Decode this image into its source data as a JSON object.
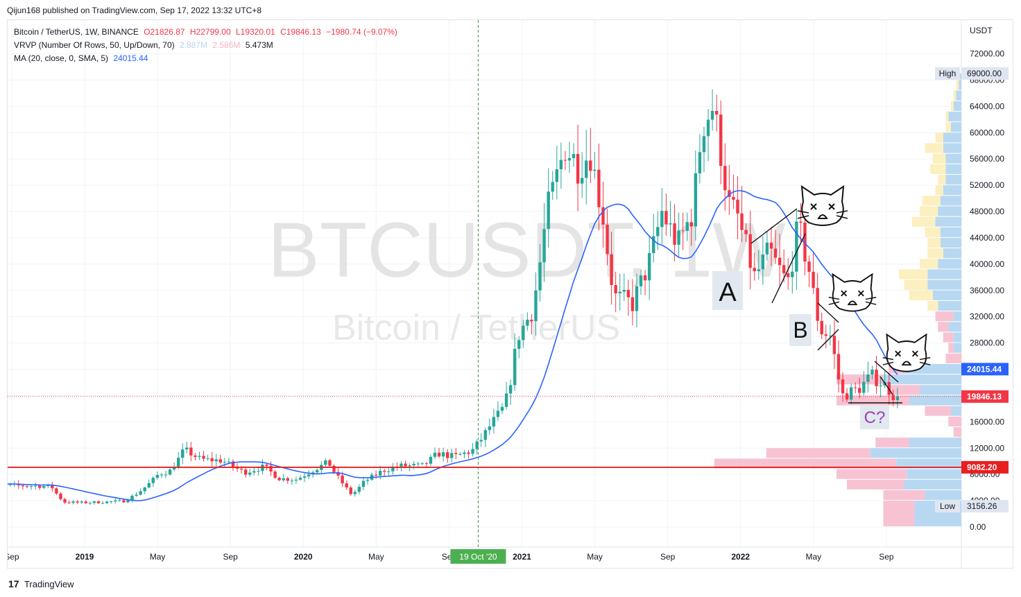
{
  "publisher": "Qijun168 published on TradingView.com, Sep 17, 2022 13:32 UTC+8",
  "footer": {
    "logo_glyph": "17",
    "brand": "TradingView"
  },
  "legend": {
    "symbol": "Bitcoin / TetherUS, 1W, BINANCE",
    "open": "O21826.87",
    "high": "H22799.00",
    "low": "L19320.01",
    "close": "C19846.13",
    "change": "−1980.74 (−9.07%)",
    "vrvp_label": "VRVP (Number Of Rows, 50, Up/Down, 70)",
    "vrvp_up": "2.887M",
    "vrvp_down": "2.586M",
    "vrvp_total": "5.473M",
    "ma_label": "MA (20, close, 0, SMA, 5)",
    "ma_value": "24015.44"
  },
  "watermark": {
    "line1": "BTCUSDT, 1W",
    "line2": "Bitcoin / TetherUS"
  },
  "annotations": {
    "a": "A",
    "b": "B",
    "c": "C?"
  },
  "colors": {
    "up": "#26a69a",
    "down": "#f23645",
    "ma": "#2962ff",
    "support": "#e91e1e",
    "vrvp_up": "#b8d8f2",
    "vrvp_down": "#f7c3d3",
    "vrvp_va_up": "#fcefc0"
  },
  "chart_data": {
    "type": "candlestick",
    "title": "Bitcoin / TetherUS, 1W, BINANCE",
    "currency": "USDT",
    "ylim": [
      -2200,
      77000
    ],
    "y_ticks": [
      0,
      4000,
      8000,
      12000,
      16000,
      20000,
      24000,
      28000,
      32000,
      36000,
      40000,
      44000,
      48000,
      52000,
      56000,
      60000,
      64000,
      68000,
      72000
    ],
    "y_tick_labels": [
      "0.00",
      "4000.00",
      "8000.00",
      "12000.00",
      "16000.00",
      "20000.00",
      "24000.00",
      "28000.00",
      "32000.00",
      "36000.00",
      "40000.00",
      "44000.00",
      "48000.00",
      "52000.00",
      "56000.00",
      "60000.00",
      "64000.00",
      "68000.00",
      "72000.00"
    ],
    "x_labels": [
      "Sep",
      "2019",
      "May",
      "Sep",
      "2020",
      "May",
      "Sep",
      "2021",
      "May",
      "Sep",
      "2022",
      "May",
      "Sep"
    ],
    "x_label_months": [
      -4,
      0,
      4,
      8,
      12,
      16,
      20,
      24,
      28,
      32,
      36,
      40,
      44
    ],
    "crosshair_label": "19 Oct '20",
    "crosshair_month": 21.6,
    "price_labels": {
      "high_label": "High",
      "high": "69000.00",
      "high_value": 69000,
      "low_label": "Low",
      "low": "3156.26",
      "low_value": 3156.26,
      "ma": "24015.44",
      "ma_value": 24015.44,
      "last": "19846.13",
      "last_value": 19846.13,
      "support": "9082.20",
      "support_value": 9082.2
    },
    "anchors": [
      [
        -5.7,
        6800
      ],
      [
        -3.8,
        6300
      ],
      [
        -1.6,
        6200
      ],
      [
        -0.9,
        3800
      ],
      [
        0,
        3700
      ],
      [
        1.3,
        3800
      ],
      [
        2.4,
        3950
      ],
      [
        3.1,
        5100
      ],
      [
        4.3,
        8100
      ],
      [
        4.9,
        8500
      ],
      [
        5.7,
        11800
      ],
      [
        6.6,
        10300
      ],
      [
        7.8,
        10100
      ],
      [
        9.0,
        8300
      ],
      [
        10.1,
        9200
      ],
      [
        10.9,
        7400
      ],
      [
        11.8,
        7200
      ],
      [
        12.8,
        8700
      ],
      [
        13.6,
        9900
      ],
      [
        14.4,
        6600
      ],
      [
        14.9,
        4900
      ],
      [
        15.6,
        7000
      ],
      [
        16.6,
        8600
      ],
      [
        17.6,
        9300
      ],
      [
        18.8,
        9300
      ],
      [
        19.6,
        11200
      ],
      [
        20.5,
        10700
      ],
      [
        21.5,
        11600
      ],
      [
        22.5,
        15500
      ],
      [
        23.3,
        18500
      ],
      [
        24.0,
        29000
      ],
      [
        24.8,
        33000
      ],
      [
        25.6,
        48000
      ],
      [
        26.6,
        58000
      ],
      [
        27.3,
        55000
      ],
      [
        28.0,
        57000
      ],
      [
        28.7,
        47000
      ],
      [
        29.3,
        35000
      ],
      [
        30.3,
        34000
      ],
      [
        31.3,
        41000
      ],
      [
        31.9,
        48000
      ],
      [
        32.8,
        43000
      ],
      [
        33.6,
        48000
      ],
      [
        34.1,
        61000
      ],
      [
        34.7,
        64000
      ],
      [
        35.1,
        58000
      ],
      [
        35.6,
        49000
      ],
      [
        36.1,
        47000
      ],
      [
        37.0,
        38000
      ],
      [
        37.8,
        42000
      ],
      [
        38.8,
        37000
      ],
      [
        39.4,
        46000
      ],
      [
        40.0,
        39000
      ],
      [
        40.6,
        30000
      ],
      [
        41.2,
        29000
      ],
      [
        41.8,
        20000
      ],
      [
        42.7,
        21000
      ],
      [
        43.4,
        23000
      ],
      [
        44.2,
        21500
      ],
      [
        44.7,
        19846
      ]
    ],
    "volume_profile": [
      [
        0,
        4000,
        0.18,
        0.12
      ],
      [
        4000,
        5600,
        0.14,
        0.16
      ],
      [
        5600,
        7200,
        0.22,
        0.22
      ],
      [
        7200,
        8800,
        0.21,
        0.27
      ],
      [
        8800,
        10400,
        0.25,
        0.7
      ],
      [
        10400,
        12000,
        0.35,
        0.4
      ],
      [
        12000,
        13600,
        0.2,
        0.13
      ],
      [
        13600,
        15200,
        0.0,
        0.03
      ],
      [
        15200,
        16800,
        0.0,
        0.05
      ],
      [
        16800,
        18400,
        0.04,
        0.1
      ],
      [
        18400,
        20000,
        0.2,
        0.28
      ],
      [
        20000,
        21600,
        0.16,
        0.12
      ],
      [
        21600,
        23200,
        0.3,
        0.18
      ],
      [
        23200,
        24800,
        0.22,
        0.06
      ],
      [
        24800,
        26400,
        0.0,
        0.06
      ],
      [
        26400,
        28000,
        0.03,
        0.02
      ],
      [
        28000,
        29600,
        0.03,
        0.04
      ],
      [
        29600,
        31200,
        0.05,
        0.04
      ],
      [
        31200,
        32800,
        0.03,
        0.07
      ],
      [
        32800,
        34400,
        0.09,
        0.04
      ],
      [
        34400,
        36000,
        0.11,
        0.09
      ],
      [
        36000,
        37600,
        0.13,
        0.09
      ],
      [
        37600,
        39200,
        0.13,
        0.11
      ],
      [
        39200,
        40800,
        0.09,
        0.07
      ],
      [
        40800,
        42400,
        0.07,
        0.06
      ],
      [
        42400,
        44000,
        0.08,
        0.05
      ],
      [
        44000,
        45600,
        0.08,
        0.06
      ],
      [
        45600,
        47200,
        0.1,
        0.09
      ],
      [
        47200,
        48800,
        0.09,
        0.07
      ],
      [
        48800,
        50400,
        0.08,
        0.07
      ],
      [
        50400,
        52000,
        0.07,
        0.03
      ],
      [
        52000,
        53600,
        0.06,
        0.03
      ],
      [
        53600,
        55200,
        0.06,
        0.06
      ],
      [
        55200,
        56800,
        0.06,
        0.05
      ],
      [
        56800,
        58400,
        0.07,
        0.07
      ],
      [
        58400,
        60000,
        0.07,
        0.03
      ],
      [
        60000,
        61600,
        0.04,
        0.02
      ],
      [
        61600,
        63200,
        0.05,
        0.01
      ],
      [
        63200,
        64800,
        0.03,
        0.01
      ],
      [
        64800,
        66400,
        0.02,
        0.01
      ],
      [
        66400,
        68000,
        0.01,
        0.01
      ],
      [
        68000,
        69000,
        0.01,
        0.0
      ]
    ]
  }
}
